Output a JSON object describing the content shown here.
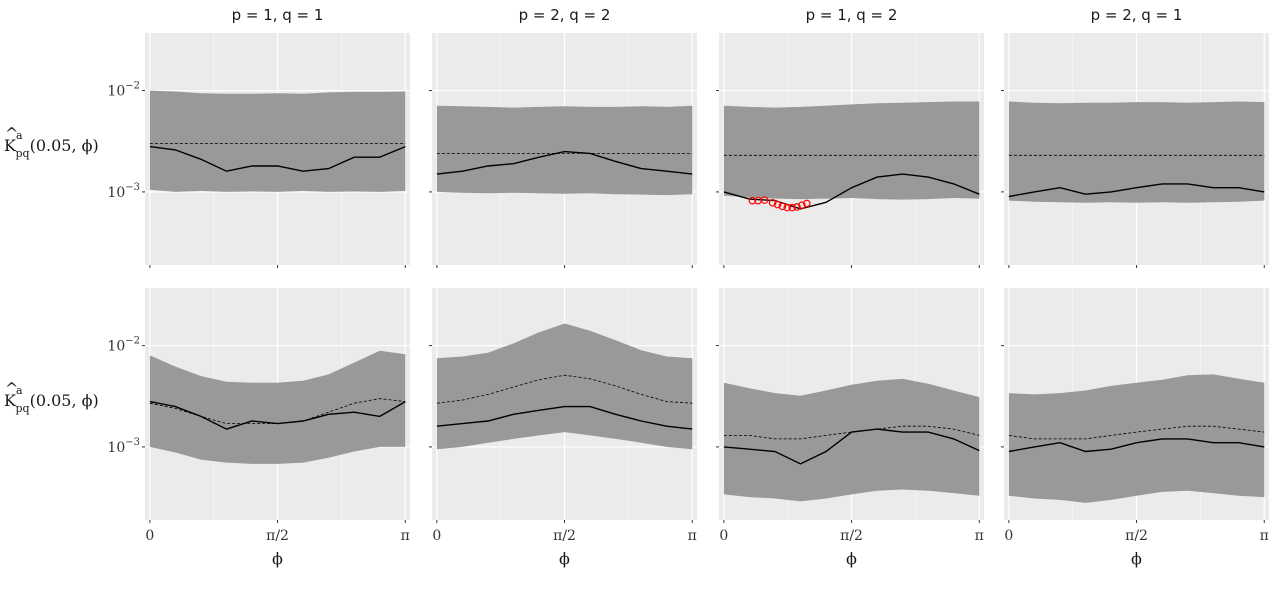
{
  "chart_data": {
    "type": "line",
    "layout": "facet-grid",
    "y_scale": "log",
    "ylim": [
      0.00019,
      0.037
    ],
    "xlim": [
      -0.06,
      3.2
    ],
    "x_ticks": [
      {
        "value": 0,
        "label": "0"
      },
      {
        "value": 1.5708,
        "label": "π/2"
      },
      {
        "value": 3.1416,
        "label": "π"
      }
    ],
    "x_minor_gridlines": [
      0.7854,
      2.3562
    ],
    "y_ticks": [
      {
        "value": 0.01,
        "base": "10",
        "exp": "−2"
      },
      {
        "value": 0.001,
        "base": "10",
        "exp": "−3"
      }
    ],
    "ylabel": {
      "main": "K",
      "sup": "a",
      "sub": "pq",
      "args": "(0.05, ϕ)"
    },
    "xlabel": "ϕ",
    "columns": [
      "p = 1, q = 1",
      "p = 2, q = 2",
      "p = 1, q = 2",
      "p = 2, q = 1"
    ],
    "series_styles": {
      "envelope": "#999999",
      "observed": "#000000",
      "expected": "#000000",
      "flagged_points": "#ff0000",
      "panel_background": "#ebebeb",
      "gridline": "#ffffff"
    },
    "x": [
      0,
      0.3142,
      0.6283,
      0.9425,
      1.2566,
      1.5708,
      1.885,
      2.1991,
      2.5133,
      2.8274,
      3.1416
    ],
    "panels": [
      {
        "row": 1,
        "col": 1,
        "observed": [
          0.0028,
          0.0026,
          0.0021,
          0.0016,
          0.0018,
          0.0018,
          0.0016,
          0.0017,
          0.0022,
          0.0022,
          0.0028
        ],
        "expected": [
          0.003,
          0.003,
          0.003,
          0.003,
          0.003,
          0.003,
          0.003,
          0.003,
          0.003,
          0.003,
          0.003
        ],
        "upper": [
          0.01,
          0.0098,
          0.0094,
          0.0093,
          0.0093,
          0.0094,
          0.0093,
          0.0096,
          0.0097,
          0.0097,
          0.0098
        ],
        "lower": [
          0.00105,
          0.001,
          0.00102,
          0.001,
          0.00101,
          0.001,
          0.00102,
          0.001,
          0.00101,
          0.001,
          0.00102
        ],
        "flagged": []
      },
      {
        "row": 1,
        "col": 2,
        "observed": [
          0.0015,
          0.0016,
          0.0018,
          0.0019,
          0.0022,
          0.0025,
          0.0024,
          0.002,
          0.0017,
          0.0016,
          0.0015
        ],
        "expected": [
          0.0024,
          0.0024,
          0.0024,
          0.0024,
          0.0024,
          0.0024,
          0.0024,
          0.0024,
          0.0024,
          0.0024,
          0.0024
        ],
        "upper": [
          0.0071,
          0.007,
          0.0069,
          0.0068,
          0.0069,
          0.007,
          0.0069,
          0.0069,
          0.007,
          0.0069,
          0.0071
        ],
        "lower": [
          0.001,
          0.00098,
          0.00097,
          0.00098,
          0.00097,
          0.00096,
          0.00097,
          0.00095,
          0.00094,
          0.00093,
          0.00095
        ],
        "flagged": []
      },
      {
        "row": 1,
        "col": 3,
        "observed": [
          0.001,
          0.00085,
          0.00082,
          0.00068,
          0.00079,
          0.0011,
          0.0014,
          0.0015,
          0.0014,
          0.0012,
          0.00095
        ],
        "expected": [
          0.0023,
          0.0023,
          0.0023,
          0.0023,
          0.0023,
          0.0023,
          0.0023,
          0.0023,
          0.0023,
          0.0023,
          0.0023
        ],
        "upper": [
          0.0071,
          0.0069,
          0.0068,
          0.0069,
          0.0071,
          0.0073,
          0.0075,
          0.0076,
          0.0077,
          0.0078,
          0.0078
        ],
        "lower": [
          0.00092,
          0.00088,
          0.00086,
          0.00085,
          0.00086,
          0.00087,
          0.00085,
          0.00084,
          0.00085,
          0.00087,
          0.00086
        ],
        "flagged": [
          {
            "x": 0.35,
            "y": 0.00082
          },
          {
            "x": 0.42,
            "y": 0.00082
          },
          {
            "x": 0.5,
            "y": 0.00083
          },
          {
            "x": 0.6,
            "y": 0.00078
          },
          {
            "x": 0.66,
            "y": 0.00075
          },
          {
            "x": 0.72,
            "y": 0.00072
          },
          {
            "x": 0.78,
            "y": 0.0007
          },
          {
            "x": 0.84,
            "y": 0.0007
          },
          {
            "x": 0.9,
            "y": 0.00071
          },
          {
            "x": 0.96,
            "y": 0.00074
          },
          {
            "x": 1.02,
            "y": 0.00077
          }
        ]
      },
      {
        "row": 1,
        "col": 4,
        "observed": [
          0.0009,
          0.001,
          0.0011,
          0.00095,
          0.001,
          0.0011,
          0.0012,
          0.0012,
          0.0011,
          0.0011,
          0.001
        ],
        "expected": [
          0.0023,
          0.0023,
          0.0023,
          0.0023,
          0.0023,
          0.0023,
          0.0023,
          0.0023,
          0.0023,
          0.0023,
          0.0023
        ],
        "upper": [
          0.0078,
          0.0076,
          0.0075,
          0.0076,
          0.0076,
          0.0077,
          0.0077,
          0.0076,
          0.0077,
          0.0078,
          0.0077
        ],
        "lower": [
          0.00082,
          0.0008,
          0.00079,
          0.00078,
          0.00079,
          0.00078,
          0.00079,
          0.00078,
          0.00079,
          0.0008,
          0.00082
        ],
        "flagged": []
      },
      {
        "row": 2,
        "col": 1,
        "observed": [
          0.0028,
          0.0025,
          0.002,
          0.0015,
          0.0018,
          0.0017,
          0.0018,
          0.0021,
          0.0022,
          0.002,
          0.0028
        ],
        "expected": [
          0.0027,
          0.0024,
          0.002,
          0.0017,
          0.0017,
          0.0017,
          0.0018,
          0.0022,
          0.0027,
          0.003,
          0.0028
        ],
        "upper": [
          0.008,
          0.0062,
          0.005,
          0.0044,
          0.0043,
          0.0043,
          0.0045,
          0.0052,
          0.0068,
          0.0089,
          0.0082
        ],
        "lower": [
          0.001,
          0.00088,
          0.00075,
          0.0007,
          0.00068,
          0.00068,
          0.0007,
          0.00078,
          0.0009,
          0.001,
          0.001
        ],
        "flagged": []
      },
      {
        "row": 2,
        "col": 2,
        "observed": [
          0.0016,
          0.0017,
          0.0018,
          0.0021,
          0.0023,
          0.0025,
          0.0025,
          0.0021,
          0.0018,
          0.0016,
          0.0015
        ],
        "expected": [
          0.0027,
          0.0029,
          0.0033,
          0.0039,
          0.0046,
          0.0051,
          0.0047,
          0.004,
          0.0033,
          0.0028,
          0.0027
        ],
        "upper": [
          0.0075,
          0.0078,
          0.0085,
          0.0105,
          0.0135,
          0.0165,
          0.014,
          0.0113,
          0.009,
          0.0078,
          0.0075
        ],
        "lower": [
          0.00095,
          0.001,
          0.0011,
          0.0012,
          0.0013,
          0.0014,
          0.0013,
          0.0012,
          0.0011,
          0.001,
          0.00095
        ],
        "flagged": []
      },
      {
        "row": 2,
        "col": 3,
        "observed": [
          0.001,
          0.00095,
          0.0009,
          0.00068,
          0.0009,
          0.0014,
          0.0015,
          0.0014,
          0.0014,
          0.0012,
          0.00092
        ],
        "expected": [
          0.0013,
          0.0013,
          0.0012,
          0.0012,
          0.0013,
          0.0014,
          0.0015,
          0.0016,
          0.0016,
          0.0015,
          0.0013
        ],
        "upper": [
          0.0043,
          0.0038,
          0.0034,
          0.0032,
          0.0036,
          0.0041,
          0.0045,
          0.0047,
          0.0042,
          0.0036,
          0.0031
        ],
        "lower": [
          0.00034,
          0.00032,
          0.00031,
          0.00029,
          0.00031,
          0.00034,
          0.00037,
          0.00038,
          0.00037,
          0.00035,
          0.00033
        ],
        "flagged": []
      },
      {
        "row": 2,
        "col": 4,
        "observed": [
          0.0009,
          0.001,
          0.0011,
          0.0009,
          0.00095,
          0.0011,
          0.0012,
          0.0012,
          0.0011,
          0.0011,
          0.001
        ],
        "expected": [
          0.0013,
          0.0012,
          0.0012,
          0.0012,
          0.0013,
          0.0014,
          0.0015,
          0.0016,
          0.0016,
          0.0015,
          0.0014
        ],
        "upper": [
          0.0034,
          0.0033,
          0.0034,
          0.0036,
          0.004,
          0.0043,
          0.0046,
          0.0051,
          0.0052,
          0.0047,
          0.0043
        ],
        "lower": [
          0.00033,
          0.00031,
          0.0003,
          0.00028,
          0.0003,
          0.00033,
          0.00036,
          0.00037,
          0.00035,
          0.00033,
          0.00032
        ],
        "flagged": []
      }
    ]
  }
}
